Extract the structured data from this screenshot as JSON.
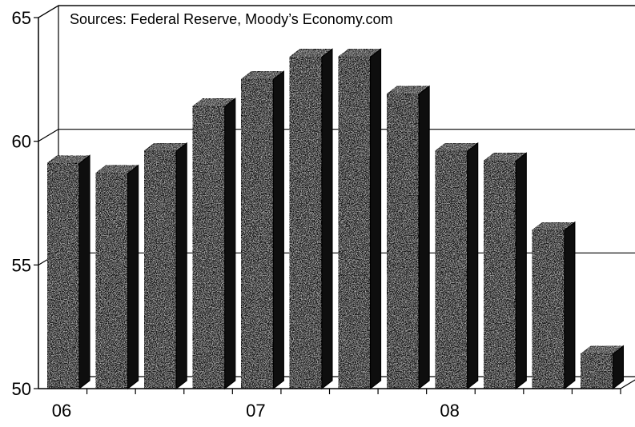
{
  "chart_data": {
    "type": "bar",
    "annotation": "Sources: Federal Reserve, Moody’s Economy.com",
    "title": "",
    "xlabel": "",
    "ylabel": "",
    "x_tick_labels": [
      "06",
      "07",
      "08"
    ],
    "y_ticks": [
      50,
      55,
      60,
      65
    ],
    "ylim": [
      50,
      65
    ],
    "grid": true,
    "series": [
      {
        "values": [
          59.1,
          58.7,
          59.6,
          61.4,
          62.5,
          63.4,
          63.4,
          61.9,
          59.6,
          59.2,
          56.4,
          51.4
        ]
      }
    ],
    "bar_color": "#1e1e1e",
    "style": "3d-columns"
  }
}
